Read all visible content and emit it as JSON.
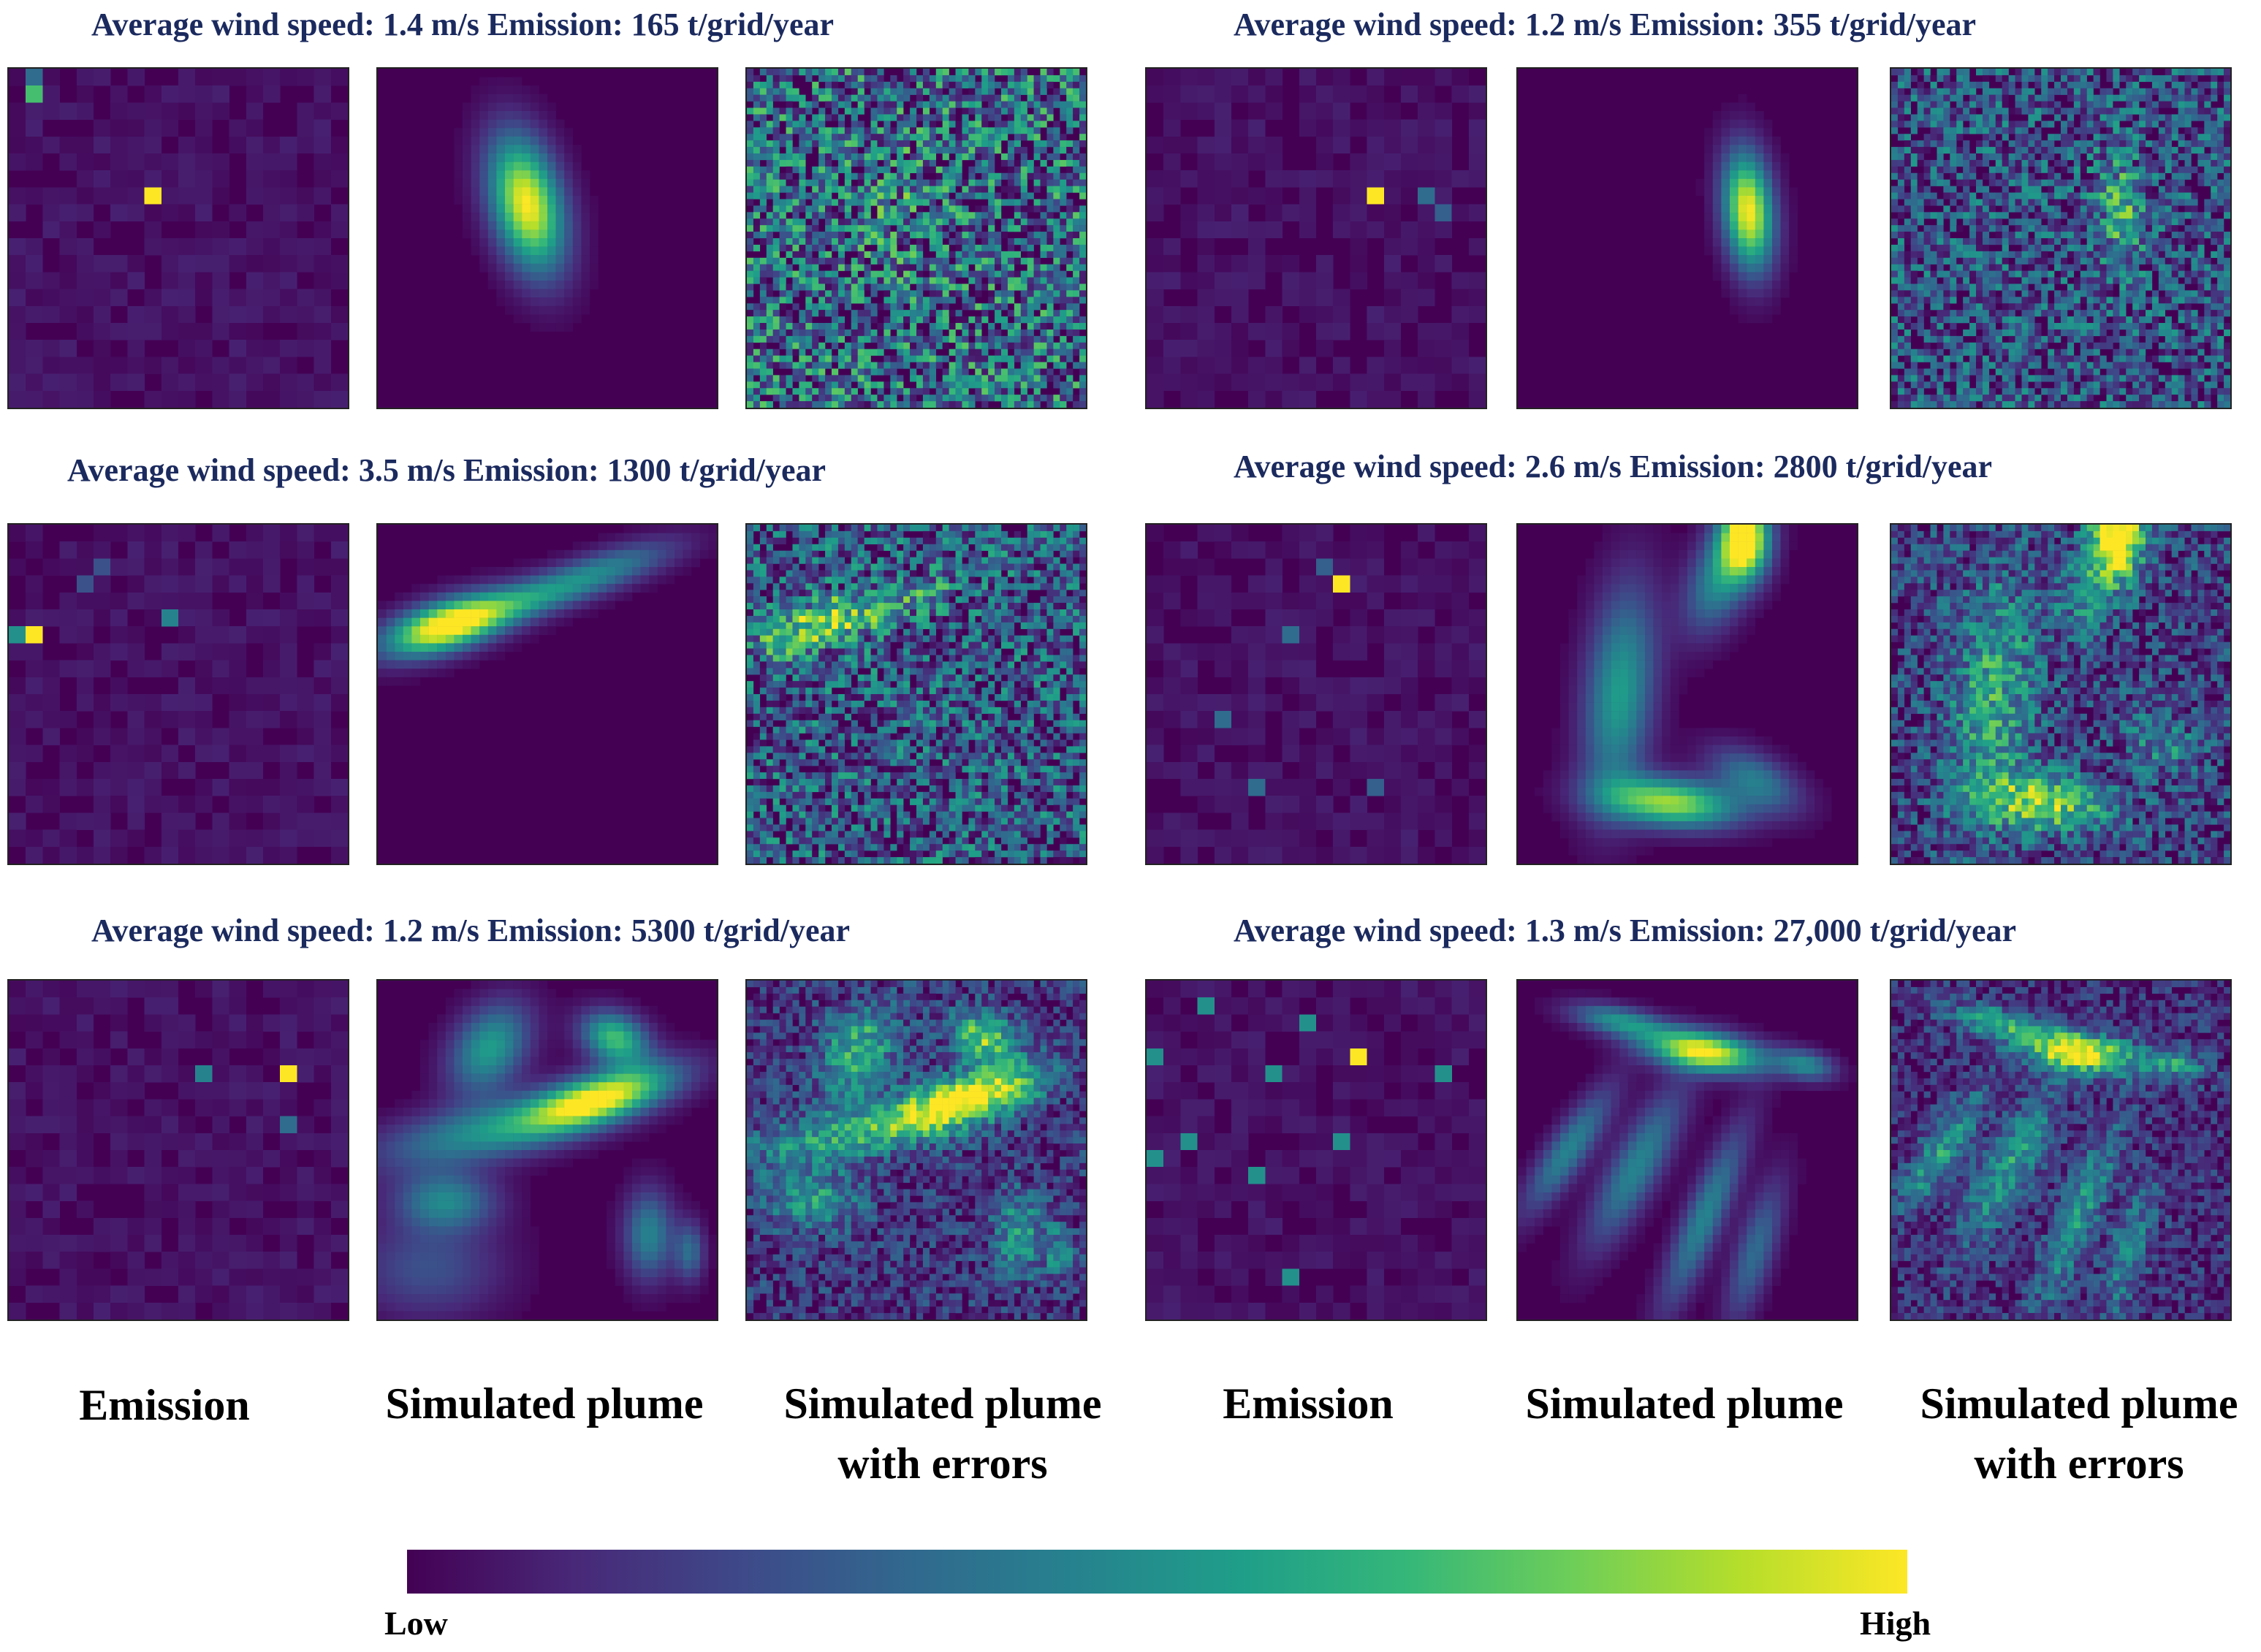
{
  "colors": {
    "caption": "#1b2a5e",
    "viridis": [
      "#440154",
      "#482878",
      "#3e4989",
      "#31688e",
      "#26828e",
      "#1f9e89",
      "#35b779",
      "#6ece58",
      "#b5de2b",
      "#fde725"
    ]
  },
  "figures": [
    {
      "caption": "Average wind speed: 1.4 m/s  Emission: 165 t/grid/year"
    },
    {
      "caption": "Average wind speed: 1.2 m/s  Emission: 355 t/grid/year"
    },
    {
      "caption": "Average wind speed: 3.5 m/s  Emission: 1300 t/grid/year"
    },
    {
      "caption": "Average wind speed: 2.6 m/s  Emission: 2800 t/grid/year"
    },
    {
      "caption": "Average wind speed: 1.2 m/s  Emission: 5300 t/grid/year"
    },
    {
      "caption": "Average wind speed: 1.3 m/s  Emission: 27,000 t/grid/year"
    }
  ],
  "column_labels": {
    "emission": "Emission",
    "plume": "Simulated plume",
    "plume_errors_line1": "Simulated plume",
    "plume_errors_line2": "with errors"
  },
  "colorbar": {
    "low": "Low",
    "high": "High"
  }
}
